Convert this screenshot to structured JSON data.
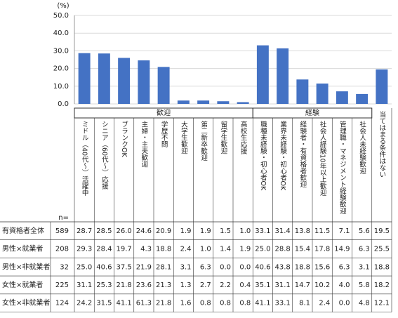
{
  "chart_data": {
    "type": "bar",
    "unit_label": "(%)",
    "categories": [
      "ミドル（40代〜）活躍中",
      "シニア（60代〜）応援",
      "ブランクOK",
      "主婦・主夫歓迎",
      "学歴不問",
      "大学生歓迎",
      "第二新卒歓迎",
      "留学生歓迎",
      "高校生応援",
      "職種未経験・初心者OK",
      "業界未経験・初心者OK",
      "経験者・有資格者歓迎",
      "社会人経験10年以上歓迎",
      "管理職・マネジメント経験歓迎",
      "社会人未経験歓迎",
      "当てはまる条件はない"
    ],
    "groups": [
      {
        "label": "歓迎",
        "count": 9
      },
      {
        "label": "経験",
        "count": 6
      }
    ],
    "values": [
      28.7,
      28.5,
      26.0,
      24.6,
      20.9,
      1.9,
      1.9,
      1.5,
      1.0,
      33.1,
      31.4,
      13.8,
      11.5,
      7.1,
      5.6,
      19.5
    ],
    "value_labels": [
      "28.7",
      "28.5",
      "26.0",
      "24.6",
      "20.9",
      "1.9",
      "1.9",
      "1.5",
      "1.0",
      "33.1",
      "31.4",
      "13.8",
      "11.5",
      "7.1",
      "5.6",
      "19.5"
    ],
    "color": "#4472c4",
    "ylim": [
      0,
      50
    ],
    "yticks": [
      {
        "value": 0,
        "label": "0.0"
      },
      {
        "value": 10,
        "label": "10.0"
      },
      {
        "value": 20,
        "label": "20.0"
      },
      {
        "value": 30,
        "label": "30.0"
      },
      {
        "value": 40,
        "label": "40.0"
      },
      {
        "value": 50,
        "label": "50.0"
      }
    ],
    "grid": true
  },
  "table": {
    "n_label": "n=",
    "first_row": {
      "label": "有資格者全体",
      "n": "589"
    },
    "rows": [
      {
        "label": "男性×就業者",
        "n": "208",
        "values": [
          "29.3",
          "28.4",
          "19.7",
          "4.3",
          "18.8",
          "2.4",
          "1.0",
          "1.4",
          "1.9",
          "25.0",
          "28.8",
          "15.4",
          "17.8",
          "14.9",
          "6.3",
          "25.5"
        ]
      },
      {
        "label": "男性×非就業者",
        "n": "32",
        "values": [
          "25.0",
          "40.6",
          "37.5",
          "21.9",
          "28.1",
          "3.1",
          "6.3",
          "0.0",
          "0.0",
          "40.6",
          "43.8",
          "18.8",
          "15.6",
          "6.3",
          "3.1",
          "18.8"
        ]
      },
      {
        "label": "女性×就業者",
        "n": "225",
        "values": [
          "31.1",
          "25.3",
          "21.8",
          "23.6",
          "21.3",
          "1.3",
          "2.7",
          "2.2",
          "0.4",
          "35.1",
          "31.1",
          "14.7",
          "10.2",
          "4.0",
          "5.8",
          "18.2"
        ]
      },
      {
        "label": "女性×非就業者",
        "n": "124",
        "values": [
          "24.2",
          "31.5",
          "41.1",
          "61.3",
          "21.8",
          "1.6",
          "0.8",
          "0.8",
          "0.8",
          "41.1",
          "33.1",
          "8.1",
          "2.4",
          "0.0",
          "4.8",
          "12.1"
        ]
      }
    ]
  }
}
